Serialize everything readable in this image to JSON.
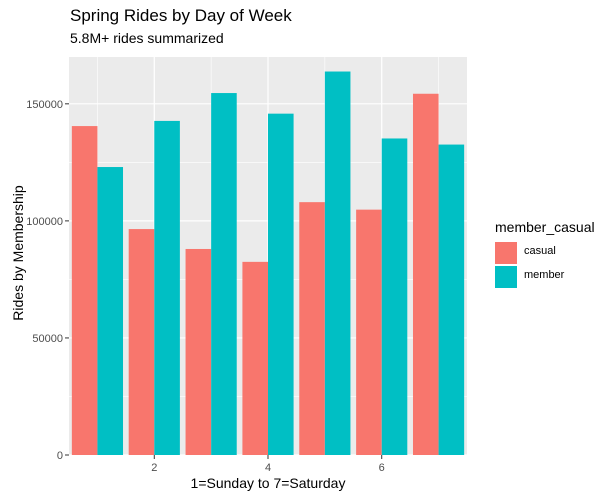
{
  "title": "Spring Rides by Day of Week",
  "subtitle": "5.8M+ rides summarized",
  "chart_data": {
    "type": "bar",
    "title": "Spring Rides by Day of Week",
    "subtitle": "5.8M+ rides summarized",
    "xlabel": "1=Sunday to 7=Saturday",
    "ylabel": "Rides by Membership",
    "x": [
      1,
      2,
      3,
      4,
      5,
      6,
      7
    ],
    "xticks": [
      "2",
      "4",
      "6"
    ],
    "yticks": [
      "0",
      "50000",
      "100000",
      "150000"
    ],
    "ylim": [
      0,
      170000
    ],
    "xlim": [
      0.5,
      7.5
    ],
    "grid": true,
    "legend": {
      "title": "member_casual",
      "position": "right"
    },
    "series": [
      {
        "name": "casual",
        "color": "#F8766D",
        "values": [
          140500,
          96500,
          88000,
          82500,
          108000,
          104800,
          154300
        ]
      },
      {
        "name": "member",
        "color": "#00BFC4",
        "values": [
          123000,
          142700,
          154600,
          145800,
          163800,
          135200,
          132600
        ]
      }
    ]
  }
}
